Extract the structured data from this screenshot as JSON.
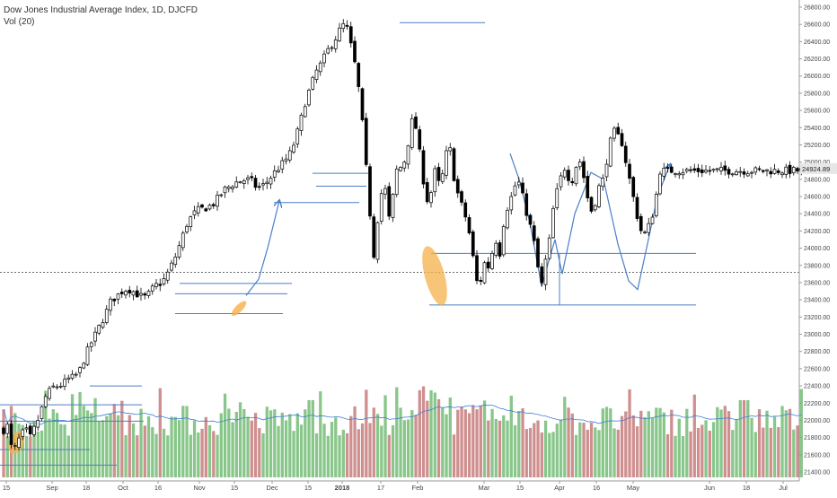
{
  "header": {
    "title": "Dow Jones Industrial Average Index, 1D, DJCFD",
    "volume_label": "Vol (20)"
  },
  "chart_data": {
    "type": "candlestick",
    "instrument": "Dow Jones Industrial Average Index, 1D, DJCFD",
    "timeframe": "1D",
    "price_axis": {
      "ylim": [
        21400,
        26800
      ],
      "ticks": [
        "21400.00",
        "21600.00",
        "21800.00",
        "22000.00",
        "22200.00",
        "22400.00",
        "22600.00",
        "22800.00",
        "23000.00",
        "23200.00",
        "23400.00",
        "23600.00",
        "23800.00",
        "24000.00",
        "24200.00",
        "24400.00",
        "24600.00",
        "24800.00",
        "25000.00",
        "25200.00",
        "25400.00",
        "25600.00",
        "25800.00",
        "26000.00",
        "26200.00",
        "26400.00",
        "26600.00",
        "26800.00"
      ],
      "last_price": "24924.89",
      "last_price_value": 24924.89
    },
    "time_axis_labels": [
      "15",
      "Sep",
      "18",
      "Oct",
      "16",
      "Nov",
      "15",
      "Dec",
      "15",
      "2018",
      "17",
      "Feb",
      "Mar",
      "15",
      "Apr",
      "16",
      "May",
      "Jun",
      "18",
      "Jul"
    ],
    "colors": {
      "up_body": "#ffffff",
      "down_body": "#000000",
      "candle_outline": "#000000",
      "volume_up": "#88c68a",
      "volume_down": "#cf8f8f",
      "volume_ma": "#3d7fd4",
      "annotation_line": "#4a7fc8",
      "highlight": "#f6b04a",
      "price_tag": "#e6e6e6"
    },
    "annotations": {
      "horizontal_levels": [
        21480,
        21660,
        21990,
        22180,
        22400,
        22580,
        23240,
        23470,
        23590,
        24530,
        24720,
        24830,
        24870,
        26620,
        23940,
        23340
      ],
      "trend_arrows": 2,
      "highlight_ellipses": 3
    },
    "volume_indicator": "Vol (20)",
    "grid": false
  }
}
